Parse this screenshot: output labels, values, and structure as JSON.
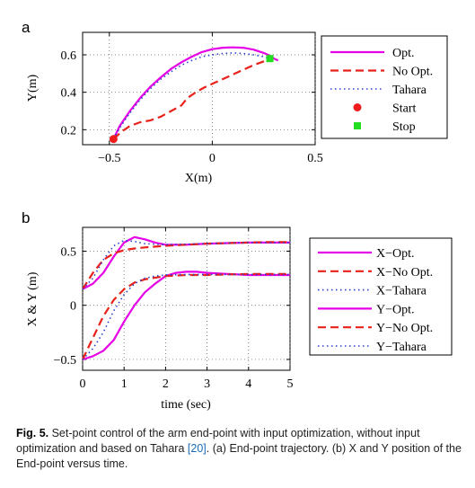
{
  "figure": {
    "caption": {
      "label": "Fig. 5.",
      "text_before": " Set-point control of the arm end-point with input optimization, without input optimization and based on Tahara ",
      "ref": "[20]",
      "text_after": ". (a) End-point trajectory. (b) X and Y position of the End-point versus time."
    }
  },
  "chart_data": [
    {
      "type": "line",
      "panel": "a",
      "xlabel": "X(m)",
      "ylabel": "Y(m)",
      "xlim": [
        -0.63,
        0.5
      ],
      "ylim": [
        0.12,
        0.72
      ],
      "xticks": [
        -0.5,
        0,
        0.5
      ],
      "xtick_labels": [
        "−0.5",
        "0",
        "0.5"
      ],
      "yticks": [
        0.2,
        0.4,
        0.6
      ],
      "ytick_labels": [
        "0.2",
        "0.4",
        "0.6"
      ],
      "grid": true,
      "legend_position": "top-right",
      "series": [
        {
          "name": "Opt.",
          "color": "#e600e6",
          "style": "solid",
          "x": [
            -0.48,
            -0.45,
            -0.4,
            -0.35,
            -0.3,
            -0.25,
            -0.2,
            -0.15,
            -0.1,
            -0.05,
            0.0,
            0.05,
            0.1,
            0.15,
            0.2,
            0.25,
            0.28,
            0.3,
            0.32
          ],
          "y": [
            0.15,
            0.22,
            0.3,
            0.37,
            0.43,
            0.48,
            0.525,
            0.56,
            0.59,
            0.615,
            0.63,
            0.638,
            0.64,
            0.638,
            0.628,
            0.61,
            0.595,
            0.58,
            0.57
          ]
        },
        {
          "name": "No Opt.",
          "color": "#e8211a",
          "style": "dashed",
          "x": [
            -0.48,
            -0.44,
            -0.4,
            -0.35,
            -0.3,
            -0.25,
            -0.2,
            -0.15,
            -0.12,
            -0.08,
            -0.04,
            0.0,
            0.05,
            0.1,
            0.15,
            0.2,
            0.25,
            0.28
          ],
          "y": [
            0.15,
            0.19,
            0.22,
            0.24,
            0.25,
            0.27,
            0.3,
            0.33,
            0.37,
            0.4,
            0.425,
            0.445,
            0.47,
            0.495,
            0.52,
            0.545,
            0.565,
            0.58
          ]
        },
        {
          "name": "Tahara",
          "color": "#2b3fd0",
          "style": "dotted",
          "x": [
            -0.48,
            -0.45,
            -0.4,
            -0.35,
            -0.3,
            -0.25,
            -0.2,
            -0.15,
            -0.1,
            -0.05,
            0.0,
            0.05,
            0.1,
            0.15,
            0.2,
            0.25,
            0.28
          ],
          "y": [
            0.15,
            0.21,
            0.29,
            0.36,
            0.42,
            0.47,
            0.51,
            0.545,
            0.57,
            0.59,
            0.6,
            0.607,
            0.61,
            0.607,
            0.6,
            0.59,
            0.58
          ]
        }
      ],
      "markers": [
        {
          "name": "Start",
          "x": -0.48,
          "y": 0.15,
          "color": "#ee1c1c",
          "shape": "circle"
        },
        {
          "name": "Stop",
          "x": 0.28,
          "y": 0.58,
          "color": "#22dd22",
          "shape": "square"
        }
      ]
    },
    {
      "type": "line",
      "panel": "b",
      "xlabel": "time (sec)",
      "ylabel": "X & Y (m)",
      "xlim": [
        0,
        5
      ],
      "ylim": [
        -0.6,
        0.72
      ],
      "xticks": [
        0,
        1,
        2,
        3,
        4,
        5
      ],
      "xtick_labels": [
        "0",
        "1",
        "2",
        "3",
        "4",
        "5"
      ],
      "yticks": [
        -0.5,
        0,
        0.5
      ],
      "ytick_labels": [
        "−0.5",
        "0",
        "0.5"
      ],
      "grid": true,
      "legend_position": "right",
      "series": [
        {
          "name": "X−Opt.",
          "color": "#e600e6",
          "style": "solid",
          "x": [
            0,
            0.25,
            0.5,
            0.75,
            1.0,
            1.25,
            1.5,
            1.75,
            2.0,
            2.5,
            3.0,
            3.5,
            4.0,
            4.5,
            5.0
          ],
          "y": [
            0.15,
            0.2,
            0.3,
            0.45,
            0.58,
            0.63,
            0.61,
            0.58,
            0.56,
            0.56,
            0.57,
            0.575,
            0.58,
            0.58,
            0.58
          ]
        },
        {
          "name": "X−No Opt.",
          "color": "#e8211a",
          "style": "dashed",
          "x": [
            0,
            0.25,
            0.5,
            0.75,
            1.0,
            1.25,
            1.5,
            2.0,
            2.5,
            3.0,
            3.5,
            4.0,
            4.5,
            5.0
          ],
          "y": [
            0.15,
            0.3,
            0.42,
            0.48,
            0.51,
            0.525,
            0.535,
            0.55,
            0.56,
            0.57,
            0.575,
            0.58,
            0.585,
            0.585
          ]
        },
        {
          "name": "X−Tahara",
          "color": "#2b3fd0",
          "style": "dotted",
          "x": [
            0,
            0.25,
            0.5,
            0.75,
            1.0,
            1.25,
            1.5,
            2.0,
            2.5,
            3.0,
            3.5,
            4.0,
            4.5,
            5.0
          ],
          "y": [
            0.15,
            0.25,
            0.42,
            0.55,
            0.6,
            0.59,
            0.57,
            0.56,
            0.565,
            0.57,
            0.575,
            0.58,
            0.58,
            0.58
          ]
        },
        {
          "name": "Y−Opt.",
          "color": "#e600e6",
          "style": "solid",
          "x": [
            0,
            0.25,
            0.5,
            0.75,
            1.0,
            1.25,
            1.5,
            1.75,
            2.0,
            2.25,
            2.5,
            2.75,
            3.0,
            3.5,
            4.0,
            4.5,
            5.0
          ],
          "y": [
            -0.5,
            -0.47,
            -0.42,
            -0.32,
            -0.15,
            0.0,
            0.12,
            0.2,
            0.27,
            0.3,
            0.31,
            0.31,
            0.3,
            0.29,
            0.28,
            0.28,
            0.28
          ]
        },
        {
          "name": "Y−No Opt.",
          "color": "#e8211a",
          "style": "dashed",
          "x": [
            0,
            0.25,
            0.5,
            0.75,
            1.0,
            1.25,
            1.5,
            2.0,
            2.5,
            3.0,
            3.5,
            4.0,
            4.5,
            5.0
          ],
          "y": [
            -0.5,
            -0.3,
            -0.1,
            0.05,
            0.15,
            0.21,
            0.24,
            0.27,
            0.28,
            0.28,
            0.285,
            0.29,
            0.29,
            0.29
          ]
        },
        {
          "name": "Y−Tahara",
          "color": "#2b3fd0",
          "style": "dotted",
          "x": [
            0,
            0.25,
            0.5,
            0.75,
            1.0,
            1.25,
            1.5,
            1.75,
            2.0,
            2.5,
            3.0,
            3.5,
            4.0,
            4.5,
            5.0
          ],
          "y": [
            -0.5,
            -0.4,
            -0.25,
            -0.05,
            0.1,
            0.2,
            0.25,
            0.27,
            0.28,
            0.285,
            0.285,
            0.285,
            0.285,
            0.285,
            0.285
          ]
        }
      ]
    }
  ]
}
